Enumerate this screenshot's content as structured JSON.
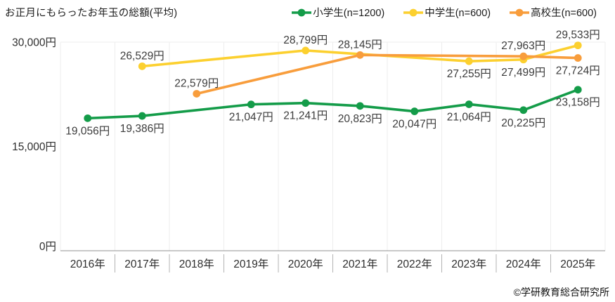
{
  "chart_data": {
    "type": "line",
    "title": "お正月にもらったお年玉の総額(平均)",
    "footer": "©学研教育総合研究所",
    "categories": [
      "2016年",
      "2017年",
      "2018年",
      "2019年",
      "2020年",
      "2021年",
      "2022年",
      "2023年",
      "2024年",
      "2025年"
    ],
    "ylim": [
      0,
      30000
    ],
    "y_ticks": [
      {
        "value": 0,
        "label": "0円"
      },
      {
        "value": 15000,
        "label": "15,000円"
      },
      {
        "value": 30000,
        "label": "30,000円"
      }
    ],
    "grid": "vertical category boundaries, horizontal line at top tick only",
    "legend_position": "top-right",
    "series": [
      {
        "name": "小学生(n=1200)",
        "color": "#149c49",
        "points": [
          {
            "category": "2016年",
            "value": 19056,
            "label": "19,056円",
            "label_position": "below"
          },
          {
            "category": "2017年",
            "value": 19386,
            "label": "19,386円",
            "label_position": "below"
          },
          {
            "category": "2019年",
            "value": 21047,
            "label": "21,047円",
            "label_position": "below"
          },
          {
            "category": "2020年",
            "value": 21241,
            "label": "21,241円",
            "label_position": "below"
          },
          {
            "category": "2021年",
            "value": 20823,
            "label": "20,823円",
            "label_position": "below"
          },
          {
            "category": "2022年",
            "value": 20047,
            "label": "20,047円",
            "label_position": "below"
          },
          {
            "category": "2023年",
            "value": 21064,
            "label": "21,064円",
            "label_position": "below"
          },
          {
            "category": "2024年",
            "value": 20225,
            "label": "20,225円",
            "label_position": "below"
          },
          {
            "category": "2025年",
            "value": 23158,
            "label": "23,158円",
            "label_position": "below"
          }
        ]
      },
      {
        "name": "中学生(n=600)",
        "color": "#fcd02f",
        "points": [
          {
            "category": "2017年",
            "value": 26529,
            "label": "26,529円",
            "label_position": "above"
          },
          {
            "category": "2020年",
            "value": 28799,
            "label": "28,799円",
            "label_position": "above"
          },
          {
            "category": "2023年",
            "value": 27255,
            "label": "27,255円",
            "label_position": "below"
          },
          {
            "category": "2024年",
            "value": 27499,
            "label": "27,499円",
            "label_position": "below"
          },
          {
            "category": "2025年",
            "value": 29533,
            "label": "29,533円",
            "label_position": "above"
          }
        ]
      },
      {
        "name": "高校生(n=600)",
        "color": "#f89d3c",
        "points": [
          {
            "category": "2018年",
            "value": 22579,
            "label": "22,579円",
            "label_position": "above"
          },
          {
            "category": "2021年",
            "value": 28145,
            "label": "28,145円",
            "label_position": "above"
          },
          {
            "category": "2024年",
            "value": 27963,
            "label": "27,963円",
            "label_position": "above"
          },
          {
            "category": "2025年",
            "value": 27724,
            "label": "27,724円",
            "label_position": "below"
          }
        ]
      }
    ],
    "axis_colors": {
      "x_axis_line": "#a6a6a6",
      "tick_separator": "#b3b3b3",
      "gridline": "#ededed",
      "tick_label": "#2e2e2e",
      "data_label": "#3c3c3c"
    }
  }
}
